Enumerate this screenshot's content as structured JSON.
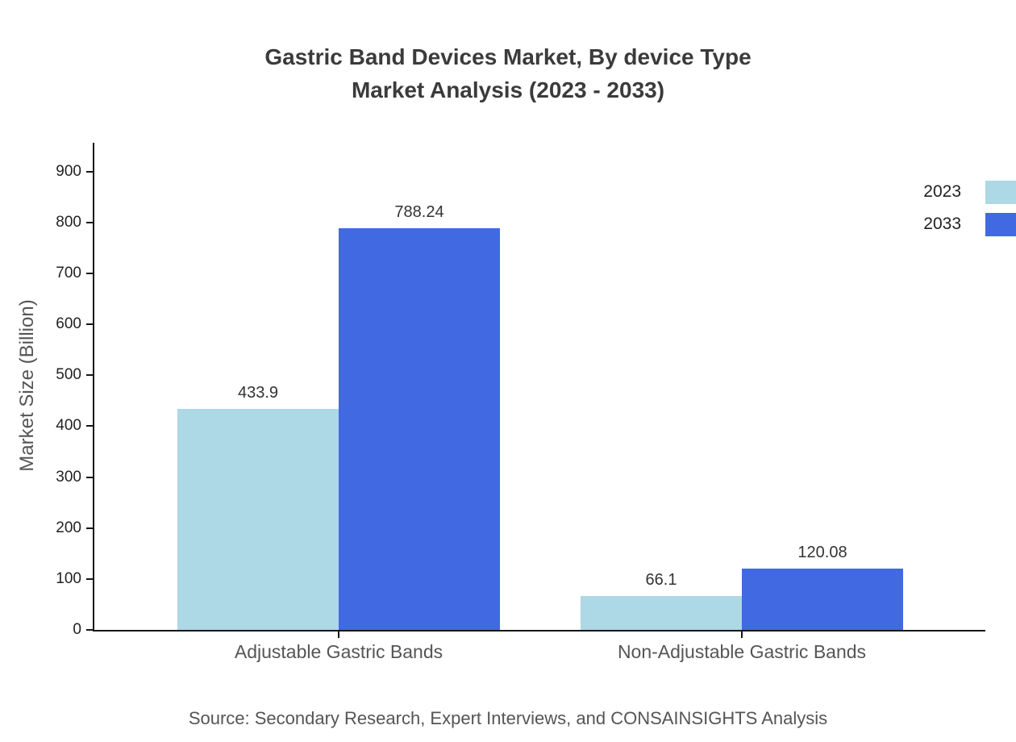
{
  "header": {
    "title_line1": "Gastric Band Devices Market, By device Type",
    "title_line2": "Market Analysis (2023 - 2033)"
  },
  "footer": {
    "source": "Source: Secondary Research, Expert Interviews, and CONSAINSIGHTS Analysis"
  },
  "chart_data": {
    "type": "bar",
    "title": "Gastric Band Devices Market, By device Type Market Analysis (2023 - 2033)",
    "categories": [
      "Adjustable Gastric Bands",
      "Non-Adjustable Gastric Bands"
    ],
    "series": [
      {
        "name": "2023",
        "color": "#add8e6",
        "values": [
          433.9,
          66.1
        ]
      },
      {
        "name": "2033",
        "color": "#4169e1",
        "values": [
          788.24,
          120.08
        ]
      }
    ],
    "xlabel": "",
    "ylabel": "Market Size (Billion)",
    "ylim": [
      0,
      950
    ],
    "yticks": [
      0,
      100,
      200,
      300,
      400,
      500,
      600,
      700,
      800,
      900
    ],
    "grid": false,
    "legend_position": "top-right"
  }
}
